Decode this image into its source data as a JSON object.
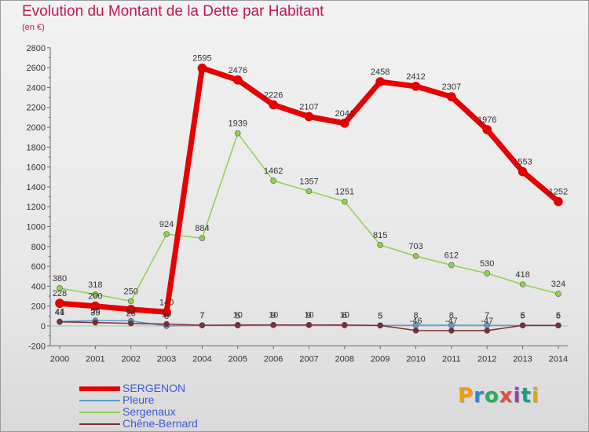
{
  "title": "Evolution du Montant de la Dette par Habitant",
  "subtitle": "(en €)",
  "logo": {
    "text": "Proxiti",
    "letter_colors": [
      "#f39c12",
      "#2e86de",
      "#27ae60",
      "#e74c3c",
      "#8e44ad",
      "#16a085",
      "#d4ac0d"
    ]
  },
  "chart_data": {
    "type": "line",
    "title": "Evolution du Montant de la Dette par Habitant",
    "ylabel": "(en €)",
    "xlabel": "",
    "x": [
      "2000",
      "2001",
      "2002",
      "2003",
      "2004",
      "2005",
      "2006",
      "2007",
      "2008",
      "2009",
      "2010",
      "2011",
      "2012",
      "2013",
      "2014"
    ],
    "ylim": [
      -200,
      2800
    ],
    "yticks": [
      -200,
      0,
      200,
      400,
      600,
      800,
      1000,
      1200,
      1400,
      1600,
      1800,
      2000,
      2200,
      2400,
      2600,
      2800
    ],
    "grid": false,
    "legend_position": "bottom-left",
    "series": [
      {
        "name": "SERGENON",
        "color": "#e60000",
        "width": 7,
        "values": [
          228,
          200,
          167,
          140,
          2595,
          2476,
          2226,
          2107,
          2041,
          2458,
          2412,
          2307,
          1976,
          1553,
          1252
        ],
        "labels": [
          "228",
          "200",
          "",
          "140",
          "2595",
          "2476",
          "2226",
          "2107",
          "2041",
          "2458",
          "2412",
          "2307",
          "1976",
          "1553",
          "1252"
        ]
      },
      {
        "name": "Pleure",
        "color": "#5b9bd5",
        "width": 1.5,
        "values": [
          44,
          55,
          51,
          0,
          7,
          5,
          9,
          9,
          6,
          5,
          8,
          8,
          7,
          5,
          6
        ],
        "labels": [
          "44",
          "55",
          "51",
          "0",
          "7",
          "5",
          "9",
          "9",
          "6",
          "5",
          "8",
          "8",
          "7",
          "5",
          "6"
        ]
      },
      {
        "name": "Sergenaux",
        "color": "#8fd14f",
        "width": 1.5,
        "values": [
          380,
          318,
          250,
          924,
          884,
          1939,
          1462,
          1357,
          1251,
          815,
          703,
          612,
          530,
          418,
          324
        ],
        "labels": [
          "380",
          "318",
          "250",
          "924",
          "884",
          "1939",
          "1462",
          "1357",
          "1251",
          "815",
          "703",
          "612",
          "530",
          "418",
          "324"
        ]
      },
      {
        "name": "Chêne-Bernard",
        "color": "#7a2e35",
        "width": 1.5,
        "values": [
          41,
          35,
          26,
          19,
          7,
          10,
          10,
          10,
          10,
          5,
          -46,
          -47,
          -47,
          6,
          5
        ],
        "labels": [
          "41",
          "35",
          "26",
          "19",
          "7",
          "10",
          "10",
          "10",
          "10",
          "5",
          "-46",
          "-47",
          "-47",
          "6",
          "5"
        ]
      }
    ]
  }
}
